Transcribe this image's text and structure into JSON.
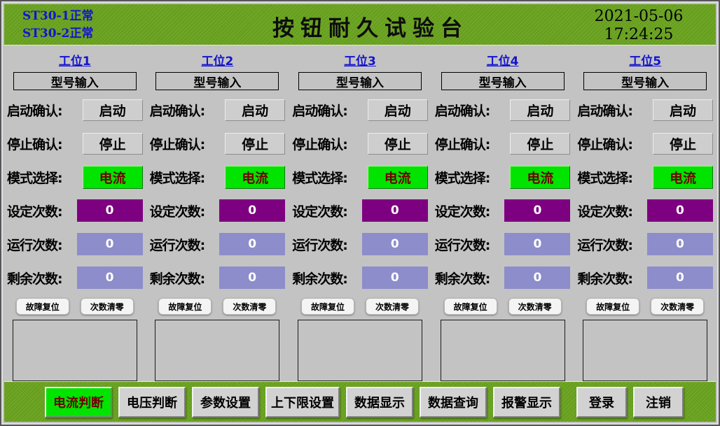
{
  "header": {
    "status_lines": [
      "ST30-1正常",
      "ST30-2正常"
    ],
    "title": "按钮耐久试验台",
    "date": "2021-05-06",
    "time": "17:24:25"
  },
  "labels": {
    "model_input": "型号输入",
    "start_confirm": "启动确认:",
    "start_btn": "启动",
    "stop_confirm": "停止确认:",
    "stop_btn": "停止",
    "mode_select": "模式选择:",
    "set_count": "设定次数:",
    "run_count": "运行次数:",
    "remain_count": "剩余次数:",
    "fault_reset": "故障复位",
    "count_clear": "次数清零"
  },
  "stations": [
    {
      "name": "工位1",
      "mode": "电流",
      "set_count": "0",
      "run_count": "0",
      "remain_count": "0"
    },
    {
      "name": "工位2",
      "mode": "电流",
      "set_count": "0",
      "run_count": "0",
      "remain_count": "0"
    },
    {
      "name": "工位3",
      "mode": "电流",
      "set_count": "0",
      "run_count": "0",
      "remain_count": "0"
    },
    {
      "name": "工位4",
      "mode": "电流",
      "set_count": "0",
      "run_count": "0",
      "remain_count": "0"
    },
    {
      "name": "工位5",
      "mode": "电流",
      "set_count": "0",
      "run_count": "0",
      "remain_count": "0"
    }
  ],
  "bottom_bar": {
    "buttons": [
      {
        "label": "电流判断",
        "active": true
      },
      {
        "label": "电压判断",
        "active": false
      },
      {
        "label": "参数设置",
        "active": false
      },
      {
        "label": "上下限设置",
        "active": false
      },
      {
        "label": "数据显示",
        "active": false
      },
      {
        "label": "数据查询",
        "active": false
      },
      {
        "label": "报警显示",
        "active": false
      },
      {
        "label": "登录",
        "active": false
      },
      {
        "label": "注销",
        "active": false
      }
    ]
  },
  "colors": {
    "bar-green": "#6aa41f",
    "panel-gray": "#c3c3c3",
    "status-blue": "#1414cf",
    "bright-green": "#00e400",
    "dark-red": "#700000",
    "set-purple": "#7d0080",
    "count-lavender": "#8d8dcb"
  }
}
